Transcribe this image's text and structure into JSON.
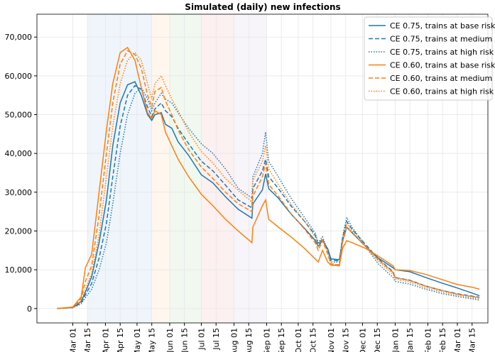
{
  "chart_data": {
    "type": "line",
    "title": "Simulated (daily) new infections",
    "x": [
      -15,
      0,
      8,
      12,
      18,
      25,
      32,
      38,
      45,
      52,
      59,
      65,
      71,
      75,
      78,
      84,
      88,
      94,
      100,
      110,
      122,
      133,
      145,
      157,
      170,
      171,
      180,
      183,
      186,
      195,
      207,
      220,
      230,
      233,
      237,
      242,
      245,
      253,
      256,
      260,
      265,
      278,
      290,
      304,
      306,
      320,
      335,
      350,
      365,
      379,
      386
    ],
    "series": [
      {
        "name": "CE 0.75, trains at base risk",
        "color": "#1f77b4",
        "linestyle": "solid",
        "values": [
          0,
          300,
          1800,
          4200,
          8200,
          17000,
          28000,
          42000,
          53000,
          57700,
          58500,
          55000,
          50000,
          48500,
          50000,
          50500,
          47500,
          46500,
          43000,
          39500,
          34500,
          32400,
          28800,
          25600,
          23300,
          27000,
          30600,
          34700,
          30900,
          28500,
          24400,
          20700,
          17600,
          16000,
          17500,
          15400,
          12800,
          12600,
          17400,
          21000,
          19600,
          16000,
          13000,
          10500,
          10000,
          9500,
          8000,
          6600,
          5300,
          4000,
          3300
        ]
      },
      {
        "name": "CE 0.75, trains at medium risk",
        "color": "#1f77b4",
        "linestyle": "dashed",
        "values": [
          0,
          250,
          1500,
          3500,
          6500,
          13000,
          22000,
          34000,
          47000,
          55000,
          57500,
          56500,
          52000,
          49500,
          51500,
          53000,
          51000,
          49500,
          46500,
          42500,
          38000,
          35500,
          31800,
          28000,
          26000,
          31000,
          35500,
          38500,
          34000,
          31000,
          26500,
          22500,
          19000,
          16500,
          18000,
          15000,
          12500,
          12300,
          18000,
          22500,
          20500,
          16500,
          12800,
          9500,
          8000,
          7300,
          5800,
          4700,
          3800,
          3200,
          2900
        ]
      },
      {
        "name": "CE 0.75, trains at high risk",
        "color": "#1f77b4",
        "linestyle": "dotted",
        "values": [
          0,
          200,
          1200,
          2800,
          5000,
          10000,
          17000,
          27000,
          40000,
          50000,
          55500,
          57000,
          54000,
          51000,
          53000,
          55500,
          54000,
          53000,
          50500,
          46500,
          42500,
          40000,
          36000,
          31000,
          28500,
          34000,
          40000,
          45500,
          38000,
          34000,
          28500,
          23500,
          19500,
          17000,
          18500,
          15000,
          12000,
          12000,
          18500,
          23500,
          21000,
          16000,
          11500,
          8000,
          7000,
          6300,
          5000,
          3900,
          3100,
          2500,
          2200
        ]
      },
      {
        "name": "CE 0.60, trains at base risk",
        "color": "#ff7f0e",
        "linestyle": "solid",
        "values": [
          0,
          400,
          3000,
          10500,
          14000,
          30000,
          46000,
          58000,
          66000,
          67300,
          64000,
          57000,
          50500,
          49000,
          51000,
          50000,
          45500,
          42000,
          38500,
          34000,
          29500,
          26500,
          23000,
          20000,
          17000,
          21000,
          26500,
          28000,
          23000,
          21000,
          18500,
          15500,
          12800,
          12000,
          15000,
          12000,
          11200,
          11000,
          15500,
          17500,
          17000,
          15500,
          13500,
          11000,
          10000,
          9800,
          8800,
          7500,
          6200,
          5500,
          5000
        ]
      },
      {
        "name": "CE 0.60, trains at medium risk",
        "color": "#ff7f0e",
        "linestyle": "dashed",
        "values": [
          0,
          350,
          2500,
          7000,
          11000,
          24000,
          40000,
          53000,
          63000,
          66500,
          65500,
          62000,
          55000,
          52000,
          56000,
          57000,
          53500,
          50000,
          46000,
          41000,
          36500,
          33500,
          30000,
          27000,
          25000,
          29000,
          34000,
          37500,
          32000,
          29000,
          24500,
          20500,
          17000,
          15000,
          17500,
          14000,
          11500,
          11300,
          17000,
          21000,
          19500,
          16000,
          12600,
          9300,
          8000,
          7200,
          5800,
          4700,
          3700,
          3100,
          2800
        ]
      },
      {
        "name": "CE 0.60, trains at high risk",
        "color": "#ff7f0e",
        "linestyle": "dotted",
        "values": [
          0,
          300,
          2000,
          5000,
          9000,
          19000,
          34000,
          47000,
          58000,
          64000,
          66000,
          64000,
          58000,
          54000,
          58000,
          60000,
          57500,
          54000,
          51000,
          45500,
          40500,
          37500,
          33500,
          30500,
          27500,
          33000,
          38000,
          42000,
          36000,
          32000,
          27000,
          22500,
          18500,
          16000,
          18000,
          14500,
          11500,
          11200,
          17200,
          22000,
          20000,
          16000,
          12200,
          8800,
          7600,
          6800,
          5400,
          4300,
          3400,
          2800,
          2500
        ]
      }
    ],
    "spans": [
      {
        "start": 14,
        "end": 75,
        "color": "#1f77b4"
      },
      {
        "start": 75,
        "end": 92,
        "color": "#ff7f0e"
      },
      {
        "start": 92,
        "end": 122,
        "color": "#2ca02c"
      },
      {
        "start": 122,
        "end": 153,
        "color": "#d62728"
      },
      {
        "start": 153,
        "end": 184,
        "color": "#9467bd"
      }
    ],
    "xlim": [
      -34,
      394
    ],
    "xticks": [
      {
        "value": 0,
        "label": "Mar 01"
      },
      {
        "value": 14,
        "label": "Mar 15"
      },
      {
        "value": 31,
        "label": "Apr 01"
      },
      {
        "value": 45,
        "label": "Apr 15"
      },
      {
        "value": 61,
        "label": "May 01"
      },
      {
        "value": 75,
        "label": "May 15"
      },
      {
        "value": 92,
        "label": "Jun 01"
      },
      {
        "value": 106,
        "label": "Jun 15"
      },
      {
        "value": 122,
        "label": "Jul 01"
      },
      {
        "value": 136,
        "label": "Jul 15"
      },
      {
        "value": 153,
        "label": "Aug 01"
      },
      {
        "value": 167,
        "label": "Aug 15"
      },
      {
        "value": 184,
        "label": "Sep 01"
      },
      {
        "value": 198,
        "label": "Sep 15"
      },
      {
        "value": 214,
        "label": "Oct 01"
      },
      {
        "value": 228,
        "label": "Oct 15"
      },
      {
        "value": 245,
        "label": "Nov 01"
      },
      {
        "value": 259,
        "label": "Nov 15"
      },
      {
        "value": 275,
        "label": "Dec 01"
      },
      {
        "value": 289,
        "label": "Dec 15"
      },
      {
        "value": 306,
        "label": "Jan 01"
      },
      {
        "value": 320,
        "label": "Jan 15"
      },
      {
        "value": 337,
        "label": "Feb 01"
      },
      {
        "value": 351,
        "label": "Feb 15"
      },
      {
        "value": 365,
        "label": "Mar 01"
      },
      {
        "value": 379,
        "label": "Mar 15"
      }
    ],
    "ylim": [
      -3700,
      75900
    ],
    "yticks": [
      0,
      {
        "value": 10000,
        "label": "10,000"
      },
      {
        "value": 20000,
        "label": "20,000"
      },
      {
        "value": 30000,
        "label": "30,000"
      },
      {
        "value": 40000,
        "label": "40,000"
      },
      {
        "value": 50000,
        "label": "50,000"
      },
      {
        "value": 60000,
        "label": "60,000"
      },
      {
        "value": 70000,
        "label": "70,000"
      }
    ],
    "grid": true,
    "legend": "upper right"
  }
}
